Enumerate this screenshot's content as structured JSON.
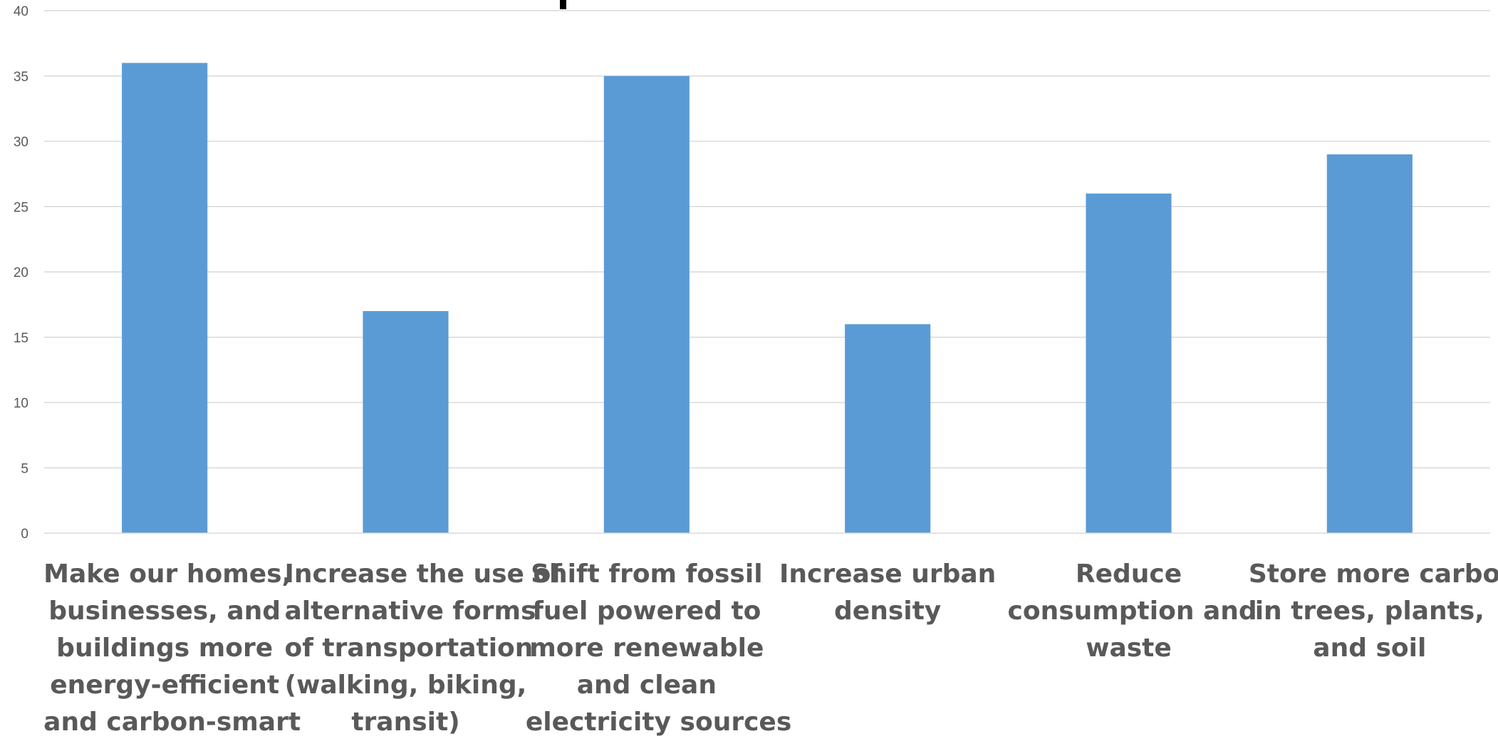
{
  "chart_data": {
    "type": "bar",
    "categories": [
      [
        "Make our homes,",
        "businesses, and",
        "buildings more",
        "energy-efficient",
        "and carbon-smart"
      ],
      [
        "Increase the use of",
        "alternative forms",
        "of transportation",
        "(walking, biking,",
        "transit)"
      ],
      [
        "Shift from fossil",
        "fuel powered to",
        "more renewable",
        "and clean",
        "electricity sources"
      ],
      [
        "Increase urban",
        "density"
      ],
      [
        "Reduce",
        "consumption and",
        "waste"
      ],
      [
        "Store more carbon",
        "in trees, plants,",
        "and soil"
      ]
    ],
    "values": [
      36,
      17,
      35,
      16,
      26,
      29
    ],
    "ylim": [
      0,
      40
    ],
    "yticks": [
      "0",
      "5",
      "10",
      "15",
      "20",
      "25",
      "30",
      "35",
      "40"
    ],
    "grid": true,
    "legend": "none",
    "bar_color": "#5b9bd5",
    "label_color": "#595959",
    "grid_color": "#d9d9d9"
  }
}
